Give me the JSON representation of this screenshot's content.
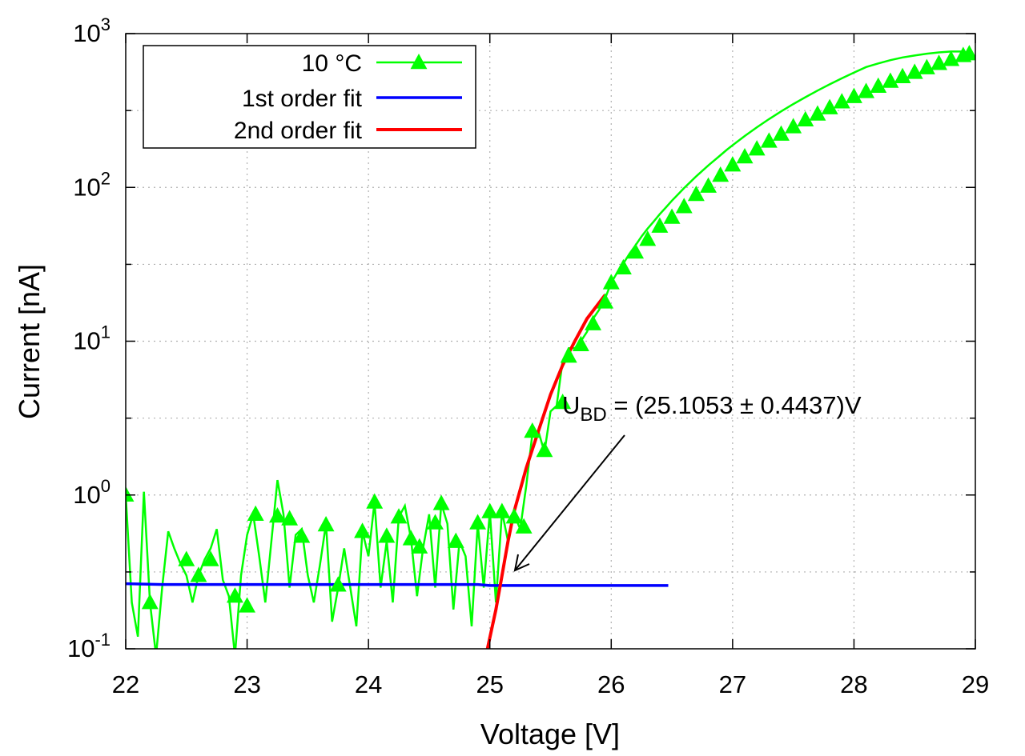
{
  "chart_data": {
    "type": "scatter",
    "xlabel": "Voltage [V]",
    "ylabel": "Current [nA]",
    "xlim": [
      22,
      29
    ],
    "ylim": [
      0.1,
      1000
    ],
    "yscale": "log",
    "grid": true,
    "legend_position": "top-left",
    "x_ticks": [
      "22",
      "23",
      "24",
      "25",
      "26",
      "27",
      "28",
      "29"
    ],
    "y_ticks": [
      {
        "base": "10",
        "exp": "-1"
      },
      {
        "base": "10",
        "exp": "0"
      },
      {
        "base": "10",
        "exp": "1"
      },
      {
        "base": "10",
        "exp": "2"
      },
      {
        "base": "10",
        "exp": "3"
      }
    ],
    "annotation": {
      "prefix": "U",
      "subscript": "BD",
      "text": " = (25.1053 ± 0.4437)V"
    },
    "series": [
      {
        "name": "10 °C",
        "color": "#00ff00",
        "style": "line-with-triangles",
        "line_points": [
          [
            22.0,
            1.0
          ],
          [
            22.05,
            0.2
          ],
          [
            22.1,
            0.12
          ],
          [
            22.15,
            1.05
          ],
          [
            22.2,
            0.2
          ],
          [
            22.25,
            0.09
          ],
          [
            22.3,
            0.25
          ],
          [
            22.35,
            0.58
          ],
          [
            22.4,
            0.45
          ],
          [
            22.45,
            0.36
          ],
          [
            22.5,
            0.3
          ],
          [
            22.55,
            0.2
          ],
          [
            22.6,
            0.3
          ],
          [
            22.65,
            0.38
          ],
          [
            22.7,
            0.45
          ],
          [
            22.75,
            0.6
          ],
          [
            22.8,
            0.28
          ],
          [
            22.85,
            0.22
          ],
          [
            22.9,
            0.09
          ],
          [
            22.95,
            0.3
          ],
          [
            23.0,
            0.55
          ],
          [
            23.05,
            0.75
          ],
          [
            23.1,
            0.4
          ],
          [
            23.15,
            0.2
          ],
          [
            23.2,
            0.5
          ],
          [
            23.25,
            1.25
          ],
          [
            23.3,
            0.75
          ],
          [
            23.35,
            0.25
          ],
          [
            23.4,
            0.55
          ],
          [
            23.45,
            0.6
          ],
          [
            23.5,
            0.3
          ],
          [
            23.55,
            0.2
          ],
          [
            23.6,
            0.35
          ],
          [
            23.65,
            0.65
          ],
          [
            23.7,
            0.15
          ],
          [
            23.75,
            0.25
          ],
          [
            23.8,
            0.45
          ],
          [
            23.85,
            0.25
          ],
          [
            23.9,
            0.14
          ],
          [
            23.95,
            0.58
          ],
          [
            24.0,
            0.4
          ],
          [
            24.05,
            0.9
          ],
          [
            24.1,
            0.25
          ],
          [
            24.15,
            0.5
          ],
          [
            24.2,
            0.2
          ],
          [
            24.25,
            0.72
          ],
          [
            24.3,
            0.85
          ],
          [
            24.35,
            0.52
          ],
          [
            24.4,
            0.22
          ],
          [
            24.45,
            0.45
          ],
          [
            24.5,
            0.75
          ],
          [
            24.55,
            0.25
          ],
          [
            24.6,
            0.88
          ],
          [
            24.65,
            0.65
          ],
          [
            24.7,
            0.18
          ],
          [
            24.75,
            0.5
          ],
          [
            24.8,
            0.4
          ],
          [
            24.85,
            0.14
          ],
          [
            24.9,
            0.65
          ],
          [
            24.95,
            0.25
          ],
          [
            25.0,
            0.78
          ],
          [
            25.05,
            0.2
          ],
          [
            25.1,
            0.78
          ],
          [
            25.15,
            0.5
          ],
          [
            25.2,
            0.75
          ],
          [
            25.25,
            0.6
          ],
          [
            25.3,
            1.15
          ],
          [
            25.35,
            2.5
          ],
          [
            25.4,
            2.6
          ],
          [
            25.45,
            1.9
          ],
          [
            25.5,
            3.5
          ],
          [
            25.55,
            3.8
          ],
          [
            25.6,
            7.5
          ],
          [
            25.65,
            9.0
          ],
          [
            25.7,
            9.0
          ],
          [
            25.75,
            10.0
          ],
          [
            25.8,
            11.5
          ],
          [
            25.85,
            14.0
          ],
          [
            25.9,
            16.0
          ],
          [
            25.95,
            19.0
          ],
          [
            26.0,
            24.0
          ],
          [
            26.05,
            28.0
          ],
          [
            26.1,
            32.0
          ],
          [
            26.15,
            37.0
          ],
          [
            26.2,
            42.0
          ],
          [
            26.25,
            48.0
          ],
          [
            26.3,
            54.0
          ],
          [
            26.35,
            60.0
          ],
          [
            26.4,
            67.0
          ],
          [
            26.45,
            74.0
          ],
          [
            26.5,
            82.0
          ],
          [
            26.55,
            90.0
          ],
          [
            26.6,
            99.0
          ],
          [
            26.65,
            108.0
          ],
          [
            26.7,
            118.0
          ],
          [
            26.75,
            128.0
          ],
          [
            26.8,
            139.0
          ],
          [
            26.85,
            150.0
          ],
          [
            26.9,
            162.0
          ],
          [
            26.95,
            175.0
          ],
          [
            27.0,
            188.0
          ],
          [
            27.1,
            216.0
          ],
          [
            27.2,
            246.0
          ],
          [
            27.3,
            278.0
          ],
          [
            27.4,
            312.0
          ],
          [
            27.5,
            348.0
          ],
          [
            27.6,
            386.0
          ],
          [
            27.7,
            426.0
          ],
          [
            27.8,
            468.0
          ],
          [
            27.9,
            512.0
          ],
          [
            28.0,
            558.0
          ],
          [
            28.1,
            606.0
          ],
          [
            28.2,
            640.0
          ],
          [
            28.3,
            672.0
          ],
          [
            28.4,
            700.0
          ],
          [
            28.5,
            720.0
          ],
          [
            28.6,
            740.0
          ],
          [
            28.7,
            755.0
          ],
          [
            28.8,
            765.0
          ],
          [
            28.9,
            765.0
          ],
          [
            29.0,
            700.0
          ]
        ],
        "marker_points": [
          [
            22.0,
            1.0
          ],
          [
            22.2,
            0.2
          ],
          [
            22.5,
            0.38
          ],
          [
            22.6,
            0.3
          ],
          [
            22.7,
            0.38
          ],
          [
            22.9,
            0.22
          ],
          [
            23.0,
            0.19
          ],
          [
            23.07,
            0.75
          ],
          [
            23.25,
            0.73
          ],
          [
            23.35,
            0.7
          ],
          [
            23.45,
            0.54
          ],
          [
            23.65,
            0.64
          ],
          [
            23.75,
            0.26
          ],
          [
            23.95,
            0.58
          ],
          [
            24.05,
            0.9
          ],
          [
            24.15,
            0.54
          ],
          [
            24.25,
            0.72
          ],
          [
            24.35,
            0.52
          ],
          [
            24.42,
            0.46
          ],
          [
            24.55,
            0.66
          ],
          [
            24.6,
            0.88
          ],
          [
            24.72,
            0.5
          ],
          [
            24.9,
            0.66
          ],
          [
            25.0,
            0.78
          ],
          [
            25.1,
            0.78
          ],
          [
            25.2,
            0.72
          ],
          [
            25.28,
            0.62
          ],
          [
            25.35,
            2.6
          ],
          [
            25.45,
            1.95
          ],
          [
            25.6,
            4.0
          ],
          [
            25.65,
            8.0
          ],
          [
            25.75,
            9.5
          ],
          [
            25.85,
            13.0
          ],
          [
            25.95,
            18.0
          ],
          [
            26.0,
            24.0
          ],
          [
            26.1,
            30.0
          ],
          [
            26.2,
            38.0
          ],
          [
            26.3,
            46.0
          ],
          [
            26.4,
            56.0
          ],
          [
            26.5,
            64.0
          ],
          [
            26.6,
            75.0
          ],
          [
            26.7,
            90.0
          ],
          [
            26.8,
            102.0
          ],
          [
            26.9,
            120.0
          ],
          [
            27.0,
            140.0
          ],
          [
            27.1,
            158.0
          ],
          [
            27.2,
            178.0
          ],
          [
            27.3,
            200.0
          ],
          [
            27.4,
            222.0
          ],
          [
            27.5,
            248.0
          ],
          [
            27.6,
            275.0
          ],
          [
            27.7,
            300.0
          ],
          [
            27.8,
            330.0
          ],
          [
            27.9,
            360.0
          ],
          [
            28.0,
            390.0
          ],
          [
            28.1,
            420.0
          ],
          [
            28.2,
            455.0
          ],
          [
            28.3,
            490.0
          ],
          [
            28.4,
            525.0
          ],
          [
            28.5,
            560.0
          ],
          [
            28.6,
            600.0
          ],
          [
            28.7,
            640.0
          ],
          [
            28.8,
            680.0
          ],
          [
            28.9,
            720.0
          ],
          [
            28.95,
            740.0
          ]
        ]
      },
      {
        "name": "1st order fit",
        "color": "#0000ff",
        "style": "line",
        "points": [
          [
            22.0,
            0.265
          ],
          [
            22.3,
            0.262
          ],
          [
            22.6,
            0.262
          ],
          [
            23.0,
            0.262
          ],
          [
            23.5,
            0.262
          ],
          [
            24.0,
            0.262
          ],
          [
            24.5,
            0.262
          ],
          [
            24.9,
            0.262
          ],
          [
            25.0,
            0.258
          ],
          [
            25.5,
            0.258
          ],
          [
            26.0,
            0.258
          ],
          [
            26.47,
            0.258
          ]
        ]
      },
      {
        "name": "2nd order fit",
        "color": "#ff0000",
        "style": "line",
        "points": [
          [
            24.98,
            0.1
          ],
          [
            25.05,
            0.18
          ],
          [
            25.1,
            0.3
          ],
          [
            25.15,
            0.5
          ],
          [
            25.2,
            0.78
          ],
          [
            25.3,
            1.5
          ],
          [
            25.4,
            2.6
          ],
          [
            25.5,
            4.5
          ],
          [
            25.6,
            7.0
          ],
          [
            25.7,
            10.0
          ],
          [
            25.8,
            14.0
          ],
          [
            25.95,
            20.0
          ]
        ]
      }
    ]
  }
}
